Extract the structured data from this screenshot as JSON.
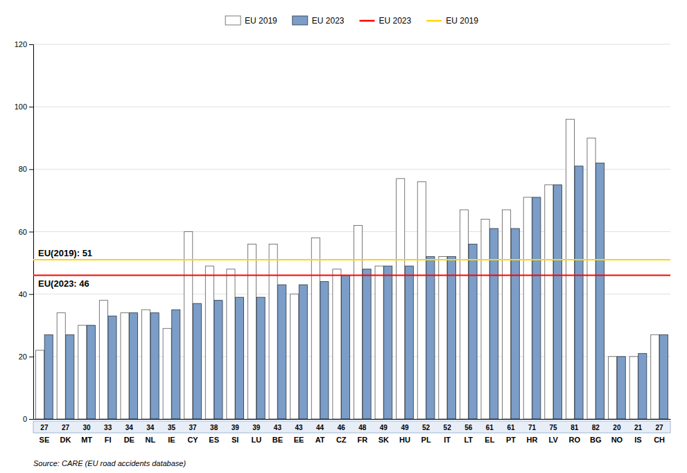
{
  "chart_data": {
    "type": "bar",
    "categories": [
      "SE",
      "DK",
      "MT",
      "FI",
      "DE",
      "NL",
      "IE",
      "CY",
      "ES",
      "SI",
      "LU",
      "BE",
      "EE",
      "AT",
      "CZ",
      "FR",
      "SK",
      "HU",
      "PL",
      "IT",
      "LT",
      "EL",
      "PT",
      "HR",
      "LV",
      "RO",
      "BG",
      "NO",
      "IS",
      "CH"
    ],
    "series": [
      {
        "name": "EU 2019",
        "color": "#ffffff",
        "values": [
          22,
          34,
          30,
          38,
          34,
          35,
          29,
          60,
          49,
          48,
          56,
          56,
          40,
          58,
          48,
          62,
          49,
          77,
          76,
          52,
          67,
          64,
          67,
          71,
          75,
          96,
          90,
          20,
          20,
          27
        ]
      },
      {
        "name": "EU 2023",
        "color": "#7b9dc7",
        "data_labels": true,
        "values": [
          27,
          27,
          30,
          33,
          34,
          34,
          35,
          37,
          38,
          39,
          39,
          43,
          43,
          44,
          46,
          48,
          49,
          49,
          52,
          52,
          56,
          61,
          61,
          71,
          75,
          81,
          82,
          20,
          21,
          27
        ]
      }
    ],
    "reference_lines": [
      {
        "name": "EU 2023",
        "value": 46,
        "color": "#ff0000",
        "label": "EU(2023: 46"
      },
      {
        "name": "EU 2019",
        "value": 51,
        "color": "#ffd700",
        "label": "EU(2019): 51"
      }
    ],
    "source": "Source: CARE (EU road accidents database)",
    "ylim": [
      0,
      120
    ],
    "yticks": [
      0,
      20,
      40,
      60,
      80,
      100,
      120
    ],
    "grid": true,
    "legend": "top"
  }
}
